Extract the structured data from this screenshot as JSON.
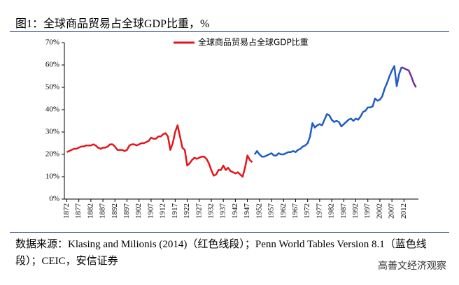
{
  "header": {
    "title": "图1：全球商品贸易占全球GDP比重，%"
  },
  "chart_data": {
    "type": "line",
    "xlim": [
      1871,
      2018
    ],
    "ylim": [
      0,
      70
    ],
    "xticks": [
      1872,
      1877,
      1882,
      1887,
      1892,
      1897,
      1902,
      1907,
      1912,
      1917,
      1922,
      1927,
      1932,
      1937,
      1942,
      1947,
      1952,
      1957,
      1962,
      1967,
      1972,
      1977,
      1982,
      1987,
      1992,
      1997,
      2002,
      2007,
      2012
    ],
    "yticks": [
      {
        "value": 0,
        "label": "0%"
      },
      {
        "value": 10,
        "label": "10%"
      },
      {
        "value": 20,
        "label": "20%"
      },
      {
        "value": 30,
        "label": "30%"
      },
      {
        "value": 40,
        "label": "40%"
      },
      {
        "value": 50,
        "label": "50%"
      },
      {
        "value": 60,
        "label": "60%"
      },
      {
        "value": 70,
        "label": "70%"
      }
    ],
    "legend": "top-center",
    "series": [
      {
        "name": "全球商品贸易占全球GDP比重",
        "color": "#e3161b",
        "x": [
          1872,
          1873,
          1874,
          1875,
          1876,
          1877,
          1878,
          1879,
          1880,
          1881,
          1882,
          1883,
          1884,
          1885,
          1886,
          1887,
          1888,
          1889,
          1890,
          1891,
          1892,
          1893,
          1894,
          1895,
          1896,
          1897,
          1898,
          1899,
          1900,
          1901,
          1902,
          1903,
          1904,
          1905,
          1906,
          1907,
          1908,
          1909,
          1910,
          1911,
          1912,
          1913,
          1914,
          1915,
          1916,
          1917,
          1918,
          1919,
          1920,
          1921,
          1922,
          1923,
          1924,
          1925,
          1926,
          1927,
          1928,
          1929,
          1930,
          1931,
          1932,
          1933,
          1934,
          1935,
          1936,
          1937,
          1938,
          1939,
          1940,
          1941,
          1942,
          1943,
          1944,
          1945,
          1946,
          1947,
          1948,
          1949
        ],
        "values": [
          21,
          21.5,
          22,
          22.5,
          22.5,
          23,
          23.5,
          23.5,
          24,
          24,
          24,
          24.5,
          24,
          23,
          22.5,
          23,
          23,
          23.5,
          24.5,
          24.5,
          23.5,
          22,
          22,
          22,
          21.5,
          22,
          24,
          24.5,
          24.5,
          24,
          24.5,
          25,
          25,
          25.5,
          26,
          27.5,
          27,
          27,
          28,
          28,
          29,
          29.5,
          28,
          22,
          25,
          30,
          33,
          28,
          23,
          22,
          15,
          16,
          17.5,
          18.5,
          18,
          18.5,
          19,
          19,
          18,
          16,
          13,
          10.5,
          11,
          13,
          13,
          15,
          13,
          14,
          12.5,
          12,
          11.5,
          12,
          11,
          10,
          14,
          19.5,
          17.5,
          16.5
        ]
      },
      {
        "color": "#1f5cc4",
        "x": [
          1950,
          1951,
          1952,
          1953,
          1954,
          1955,
          1956,
          1957,
          1958,
          1959,
          1960,
          1961,
          1962,
          1963,
          1964,
          1965,
          1966,
          1967,
          1968,
          1969,
          1970,
          1971,
          1972,
          1973,
          1974,
          1975,
          1976,
          1977,
          1978,
          1979,
          1980,
          1981,
          1982,
          1983,
          1984,
          1985,
          1986,
          1987,
          1988,
          1989,
          1990,
          1991,
          1992,
          1993,
          1994,
          1995,
          1996,
          1997,
          1998,
          1999,
          2000,
          2001,
          2002,
          2003,
          2004,
          2005,
          2006,
          2007,
          2008,
          2009,
          2010,
          2011
        ],
        "values": [
          20,
          21.5,
          20,
          19,
          19,
          19.5,
          20,
          20.5,
          19.5,
          19.5,
          20.5,
          20,
          20,
          20.5,
          21,
          21,
          21.5,
          21,
          22,
          22.5,
          23.5,
          24,
          25,
          28,
          34,
          32,
          33,
          33.5,
          33,
          35.5,
          38,
          37.5,
          35.5,
          34.5,
          35,
          34.5,
          32.5,
          33.5,
          34.5,
          35.5,
          36,
          35,
          36,
          35.5,
          37,
          39,
          39.5,
          41,
          41,
          41.5,
          45,
          44,
          44.5,
          46,
          49.5,
          52,
          55,
          57.5,
          59.5,
          50.5,
          56,
          59
        ]
      },
      {
        "color": "#7030a0",
        "x": [
          2011,
          2012,
          2013,
          2014,
          2015,
          2016,
          2017
        ],
        "values": [
          59,
          58.5,
          58,
          57.5,
          55,
          52,
          50
        ]
      }
    ]
  },
  "footer": {
    "source": "数据来源：Klasing and Milionis (2014)（红色线段）；Penn World Tables Version 8.1（蓝色线段）；CEIC，安信证券",
    "watermark": "高善文经济观察"
  }
}
